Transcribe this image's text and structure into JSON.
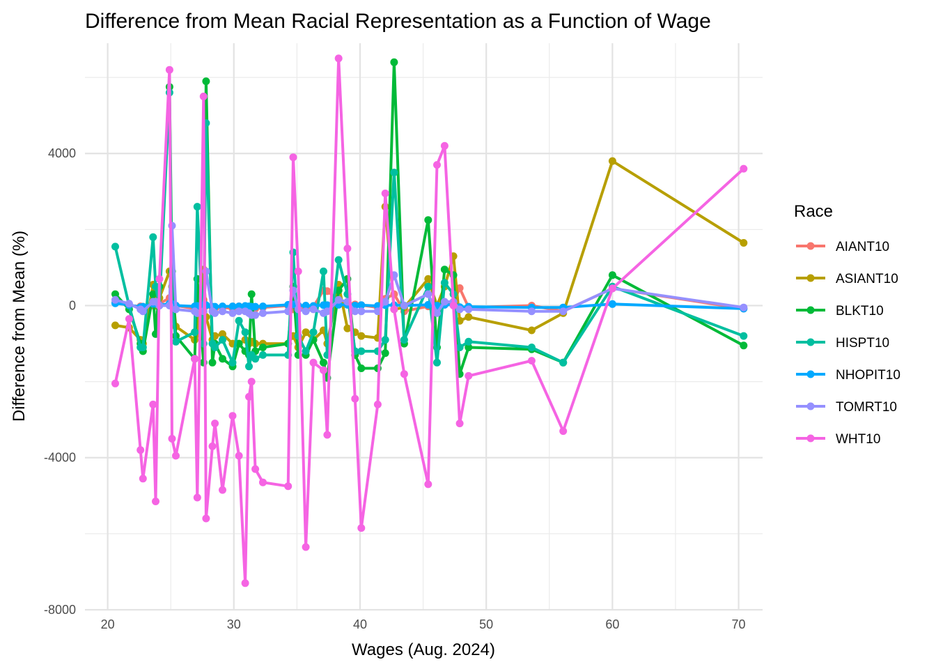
{
  "chart_data": {
    "type": "line",
    "title": "Difference from Mean Racial Representation as a Function of Wage",
    "xlabel": "Wages (Aug. 2024)",
    "ylabel": "Difference from Mean (%)",
    "xlim": [
      18.2,
      71.9
    ],
    "ylim": [
      -8000,
      6900
    ],
    "xticks": [
      20,
      30,
      40,
      50,
      60,
      70
    ],
    "yticks": [
      -8000,
      -4000,
      0,
      4000
    ],
    "grid": true,
    "legend": {
      "title": "Race",
      "position": "right"
    },
    "x": [
      20.6,
      21.7,
      22.6,
      22.8,
      23.6,
      23.8,
      24.1,
      24.9,
      25.1,
      25.4,
      26.9,
      27.1,
      27.6,
      27.8,
      28.3,
      28.5,
      29.1,
      29.9,
      30.4,
      30.9,
      31.2,
      31.4,
      31.7,
      32.3,
      34.3,
      34.7,
      35.1,
      35.7,
      36.3,
      37.1,
      37.4,
      38.3,
      39.0,
      39.6,
      40.1,
      41.4,
      42.0,
      42.7,
      43.5,
      45.4,
      46.1,
      46.7,
      47.4,
      47.9,
      48.6,
      53.6,
      56.1,
      60.0,
      70.4
    ],
    "series": [
      {
        "name": "AIANT10",
        "color": "#F8766D",
        "values": [
          80,
          0,
          -20,
          -30,
          0,
          100,
          50,
          200,
          100,
          0,
          -80,
          0,
          150,
          0,
          -50,
          -80,
          -50,
          -80,
          -20,
          -50,
          -30,
          -40,
          -80,
          -50,
          0,
          -100,
          -60,
          -60,
          -30,
          400,
          380,
          150,
          80,
          30,
          10,
          -50,
          180,
          300,
          -150,
          -20,
          0,
          20,
          80,
          460,
          -50,
          0,
          -150,
          450,
          -80
        ]
      },
      {
        "name": "ASIANT10",
        "color": "#B79F00",
        "values": [
          -520,
          -580,
          -900,
          -1000,
          550,
          0,
          200,
          900,
          500,
          -550,
          -900,
          -750,
          950,
          -300,
          -900,
          -800,
          -750,
          -1000,
          -1000,
          -900,
          -1000,
          -950,
          -1000,
          -1000,
          -1000,
          -800,
          -1100,
          -700,
          -900,
          -650,
          -1000,
          550,
          -600,
          -700,
          -800,
          -850,
          2600,
          -100,
          -50,
          700,
          0,
          500,
          1300,
          -400,
          -300,
          -650,
          -200,
          3800,
          1650
        ]
      },
      {
        "name": "BLKT10",
        "color": "#00BA38",
        "values": [
          300,
          -100,
          -1000,
          -1200,
          300,
          -750,
          500,
          5750,
          900,
          -800,
          -1400,
          700,
          -1500,
          5900,
          -1500,
          -1000,
          -1400,
          -1600,
          -1000,
          -1200,
          -1300,
          300,
          -1200,
          -1100,
          -1000,
          500,
          -1300,
          -1300,
          -900,
          -1500,
          -1900,
          400,
          700,
          -1300,
          -1650,
          -1650,
          -1250,
          6400,
          -1000,
          2250,
          -1100,
          950,
          800,
          -1800,
          -1100,
          -1150,
          -1500,
          800,
          -1050
        ]
      },
      {
        "name": "HISPT10",
        "color": "#00BFA0",
        "values": [
          1550,
          0,
          -1100,
          -1100,
          1800,
          500,
          0,
          5600,
          0,
          -950,
          -700,
          2600,
          -1000,
          4800,
          -1000,
          -1100,
          -900,
          -1500,
          -400,
          -700,
          -1600,
          -1300,
          -1400,
          -1300,
          -1300,
          1400,
          -800,
          -1200,
          -700,
          900,
          -1300,
          1200,
          300,
          -1200,
          -1200,
          -1200,
          -900,
          3500,
          -900,
          500,
          -1500,
          600,
          300,
          -1100,
          -950,
          -1100,
          -1500,
          500,
          -800
        ]
      },
      {
        "name": "NHOPIT10",
        "color": "#00A9FF",
        "values": [
          60,
          20,
          -40,
          -30,
          50,
          50,
          10,
          50,
          40,
          0,
          -20,
          -10,
          10,
          10,
          -30,
          -30,
          -20,
          -20,
          -20,
          -10,
          -20,
          -30,
          -30,
          -20,
          20,
          30,
          0,
          0,
          -10,
          10,
          10,
          20,
          20,
          0,
          10,
          -10,
          10,
          10,
          0,
          20,
          0,
          20,
          20,
          -40,
          -30,
          -50,
          -50,
          40,
          -80
        ]
      },
      {
        "name": "TOMRT10",
        "color": "#9590FF",
        "values": [
          150,
          50,
          -100,
          -150,
          100,
          100,
          0,
          0,
          2100,
          -100,
          -150,
          -200,
          -150,
          900,
          -150,
          -200,
          -150,
          -200,
          -150,
          -150,
          -200,
          -250,
          -250,
          -200,
          -150,
          400,
          -100,
          -150,
          -100,
          -200,
          -150,
          150,
          100,
          -150,
          -150,
          -150,
          100,
          800,
          0,
          300,
          -200,
          100,
          100,
          -100,
          -100,
          -150,
          -150,
          450,
          -50
        ]
      },
      {
        "name": "WHT10",
        "color": "#F564E3",
        "values": [
          -2050,
          -350,
          -3800,
          -4550,
          -2600,
          -5150,
          700,
          6200,
          -3500,
          -3950,
          -1400,
          -5050,
          5500,
          -5600,
          -3700,
          -3100,
          -4850,
          -2900,
          -3950,
          -7300,
          -2400,
          -2000,
          -4300,
          -4650,
          -4750,
          3900,
          900,
          -6350,
          -1500,
          -1700,
          -3400,
          6500,
          1500,
          -2450,
          -5850,
          -2600,
          2950,
          -100,
          -1800,
          -4700,
          3700,
          4200,
          0,
          -3100,
          -1850,
          -1450,
          -3300,
          450,
          3600
        ]
      }
    ]
  }
}
